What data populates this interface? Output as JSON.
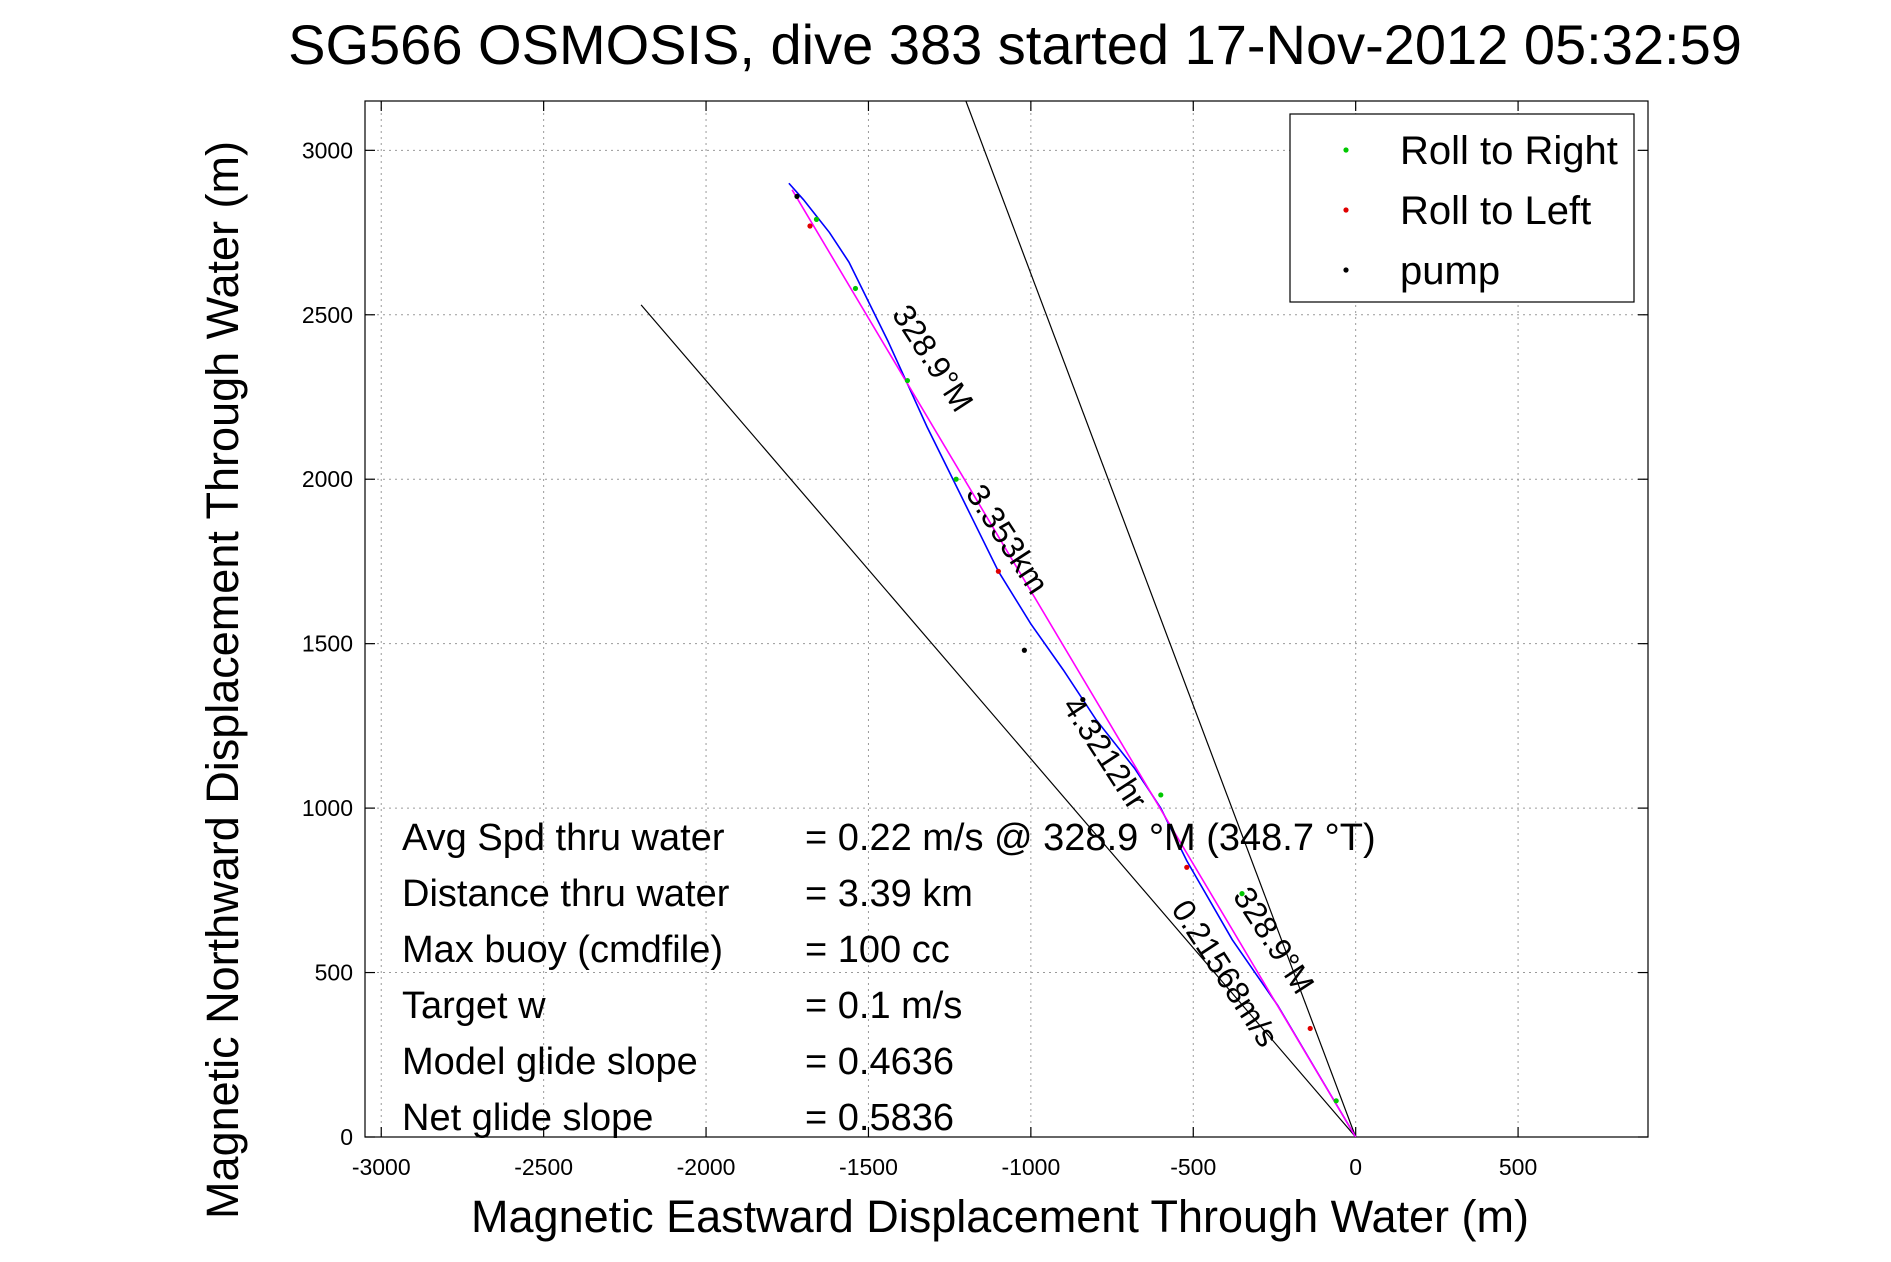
{
  "chart_data": {
    "type": "line",
    "title": "SG566 OSMOSIS, dive 383 started 17-Nov-2012 05:32:59",
    "xlabel": "Magnetic Eastward Displacement Through Water (m)",
    "ylabel": "Magnetic Northward Displacement Through Water (m)",
    "xlim": [
      -3050,
      900
    ],
    "ylim": [
      0,
      3150
    ],
    "xticks": [
      -3000,
      -2500,
      -2000,
      -1500,
      -1000,
      -500,
      0,
      500
    ],
    "yticks": [
      0,
      500,
      1000,
      1500,
      2000,
      2500,
      3000
    ],
    "grid": true,
    "legend_position": "top-right",
    "legend": [
      {
        "label": "Roll to Right",
        "color": "#00c800"
      },
      {
        "label": "Roll to Left",
        "color": "#e00000"
      },
      {
        "label": "pump",
        "color": "#000000"
      }
    ],
    "series": [
      {
        "color": "#0000ff",
        "x": [
          0,
          -120,
          -240,
          -380,
          -520,
          -600,
          -680,
          -800,
          -900,
          -1000,
          -1100,
          -1180,
          -1250,
          -1320,
          -1380,
          -1440,
          -1500,
          -1560,
          -1620,
          -1660,
          -1700,
          -1745
        ],
        "y": [
          0,
          200,
          400,
          600,
          840,
          1000,
          1120,
          1270,
          1420,
          1560,
          1720,
          1880,
          2020,
          2160,
          2290,
          2420,
          2540,
          2660,
          2750,
          2800,
          2850,
          2900
        ]
      },
      {
        "color": "#ff00ff",
        "x": [
          0,
          -1735
        ],
        "y": [
          0,
          2880
        ]
      }
    ],
    "reference_lines": [
      {
        "color": "#000000",
        "x": [
          0,
          -2200
        ],
        "y": [
          0,
          2530
        ]
      },
      {
        "color": "#000000",
        "x": [
          0,
          -1200
        ],
        "y": [
          0,
          3150
        ]
      }
    ],
    "markers": {
      "Roll to Right": {
        "x": [
          -60,
          -350,
          -600,
          -1230,
          -1380,
          -1540,
          -1660
        ],
        "y": [
          110,
          740,
          1040,
          2000,
          2300,
          2580,
          2790
        ]
      },
      "Roll to Left": {
        "x": [
          -140,
          -520,
          -1100,
          -1680
        ],
        "y": [
          330,
          820,
          1720,
          2770
        ]
      },
      "pump": {
        "x": [
          -840,
          -1020,
          -1720
        ],
        "y": [
          1330,
          1480,
          2860
        ]
      }
    },
    "line_labels": [
      {
        "text": "328.9°M",
        "x": -1330,
        "y": 2350,
        "angle": 57
      },
      {
        "text": "3.353km",
        "x": -1100,
        "y": 1800,
        "angle": 57
      },
      {
        "text": "4.3212hr",
        "x": -800,
        "y": 1150,
        "angle": 57
      },
      {
        "text": "0.21568m/s",
        "x": -430,
        "y": 480,
        "angle": 57
      },
      {
        "text": "328.9°M",
        "x": -280,
        "y": 580,
        "angle": 57
      }
    ],
    "stats": [
      {
        "label": "Avg Spd thru water",
        "value": "=  0.22 m/s @ 328.9 °M (348.7 °T)"
      },
      {
        "label": "Distance thru water",
        "value": "=  3.39 km"
      },
      {
        "label": "Max buoy (cmdfile)",
        "value": "= 100 cc"
      },
      {
        "label": "Target w",
        "value": "= 0.1 m/s"
      },
      {
        "label": "Model glide slope",
        "value": "= 0.4636"
      },
      {
        "label": "Net glide slope",
        "value": "= 0.5836"
      }
    ]
  }
}
